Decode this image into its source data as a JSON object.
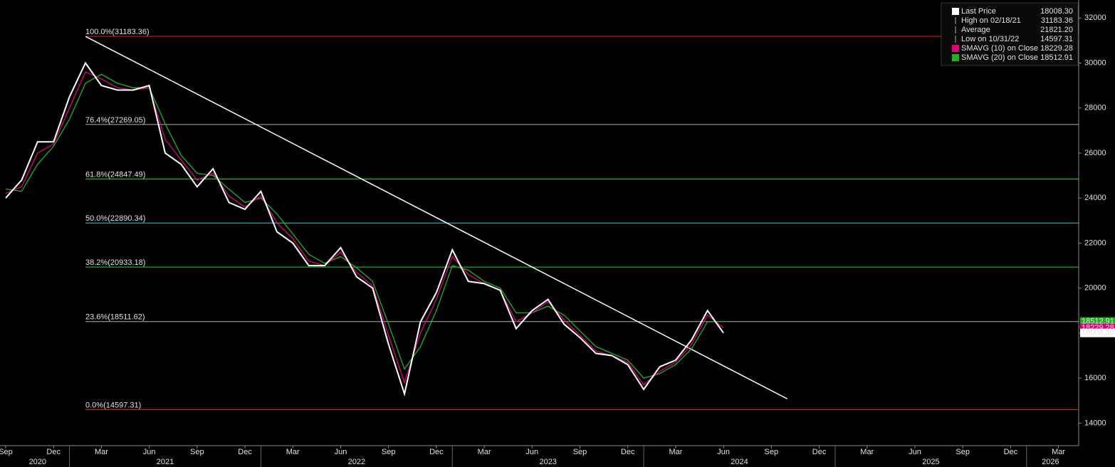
{
  "chart_data": {
    "type": "line",
    "x": [
      "2020-09",
      "2020-10",
      "2020-11",
      "2020-12",
      "2021-01",
      "2021-02",
      "2021-03",
      "2021-04",
      "2021-05",
      "2021-06",
      "2021-07",
      "2021-08",
      "2021-09",
      "2021-10",
      "2021-11",
      "2021-12",
      "2022-01",
      "2022-02",
      "2022-03",
      "2022-04",
      "2022-05",
      "2022-06",
      "2022-07",
      "2022-08",
      "2022-09",
      "2022-10",
      "2022-11",
      "2022-12",
      "2023-01",
      "2023-02",
      "2023-03",
      "2023-04",
      "2023-05",
      "2023-06",
      "2023-07",
      "2023-08",
      "2023-09",
      "2023-10",
      "2023-11",
      "2023-12",
      "2024-01",
      "2024-02",
      "2024-03",
      "2024-04",
      "2024-05",
      "2024-06"
    ],
    "series": [
      {
        "name": "Last Price",
        "color": "#ffffff",
        "tag_label": "18008,30",
        "values": [
          24000,
          24800,
          26500,
          26500,
          28500,
          30000,
          29000,
          28800,
          28800,
          29000,
          26000,
          25500,
          24500,
          25300,
          23800,
          23500,
          24300,
          22500,
          22000,
          21000,
          21000,
          21800,
          20500,
          20000,
          17500,
          15300,
          18500,
          19800,
          21700,
          20300,
          20200,
          19900,
          18200,
          19000,
          19500,
          18400,
          17800,
          17100,
          17000,
          16600,
          15500,
          16500,
          16800,
          17700,
          19000,
          18008.3
        ]
      },
      {
        "name": "SMAVG (10)  on Close",
        "color": "#e0007f",
        "tag_label": "18229,28",
        "values": [
          24200,
          24500,
          26000,
          26400,
          28000,
          29600,
          29300,
          28900,
          28800,
          28900,
          26600,
          25700,
          24800,
          25100,
          24100,
          23600,
          24100,
          22900,
          22200,
          21200,
          21000,
          21600,
          20700,
          20100,
          17900,
          15800,
          18000,
          19500,
          21400,
          20600,
          20200,
          19900,
          18500,
          18900,
          19400,
          18600,
          17900,
          17200,
          17000,
          16700,
          15700,
          16300,
          16700,
          17500,
          18800,
          18229.28
        ]
      },
      {
        "name": "SMAVG (20)  on Close",
        "color": "#1db31d",
        "tag_label": "18512,91",
        "values": [
          24400,
          24300,
          25500,
          26300,
          27500,
          29100,
          29500,
          29100,
          28900,
          28900,
          27300,
          25900,
          25100,
          25000,
          24400,
          23800,
          24000,
          23300,
          22400,
          21500,
          21100,
          21400,
          20900,
          20300,
          18400,
          16400,
          17400,
          19000,
          21000,
          20800,
          20300,
          20000,
          18900,
          18900,
          19200,
          18800,
          18100,
          17400,
          17100,
          16800,
          16000,
          16200,
          16600,
          17300,
          18500,
          18512.91
        ]
      }
    ],
    "legend": [
      {
        "name": "Last Price",
        "value_label": "18008.30",
        "color": "#ffffff"
      },
      {
        "name": "High on 02/18/21",
        "value_label": "31183.36"
      },
      {
        "name": "Average",
        "value_label": "21821.20"
      },
      {
        "name": "Low on 10/31/22",
        "value_label": "14597.31"
      },
      {
        "name": "SMAVG (10)  on Close",
        "value_label": "18229.28",
        "color": "#e0007f"
      },
      {
        "name": "SMAVG (20)  on Close",
        "value_label": "18512.91",
        "color": "#1db31d"
      }
    ],
    "fib_start": "2021-02",
    "fib_levels": [
      {
        "label": "100.0%(31183.36)",
        "value": 31183.36,
        "color": "#e02020"
      },
      {
        "label": "76.4%(27269.05)",
        "value": 27269.05,
        "color": "#b0b0b0"
      },
      {
        "label": "61.8%(24847.49)",
        "value": 24847.49,
        "color": "#22dd22"
      },
      {
        "label": "50.0%(22890.34)",
        "value": 22890.34,
        "color": "#33cccc"
      },
      {
        "label": "38.2%(20933.18)",
        "value": 20933.18,
        "color": "#22dd22"
      },
      {
        "label": "23.6%(18511.62)",
        "value": 18511.62,
        "color": "#b0b0b0"
      },
      {
        "label": "0.0%(14597.31)",
        "value": 14597.31,
        "color": "#e02020"
      }
    ],
    "trendline": {
      "x": [
        "2021-02",
        "2024-10"
      ],
      "values": [
        31183.36,
        15080
      ],
      "color": "#ffffff"
    },
    "xlim": [
      "2020-09",
      "2026-04"
    ],
    "xticks": [
      {
        "value": "2020-09",
        "label": "Sep"
      },
      {
        "value": "2020-12",
        "label": "Dec"
      },
      {
        "value": "2021-03",
        "label": "Mar"
      },
      {
        "value": "2021-06",
        "label": "Jun"
      },
      {
        "value": "2021-09",
        "label": "Sep"
      },
      {
        "value": "2021-12",
        "label": "Dec"
      },
      {
        "value": "2022-03",
        "label": "Mar"
      },
      {
        "value": "2022-06",
        "label": "Jun"
      },
      {
        "value": "2022-09",
        "label": "Sep"
      },
      {
        "value": "2022-12",
        "label": "Dec"
      },
      {
        "value": "2023-03",
        "label": "Mar"
      },
      {
        "value": "2023-06",
        "label": "Jun"
      },
      {
        "value": "2023-09",
        "label": "Sep"
      },
      {
        "value": "2023-12",
        "label": "Dec"
      },
      {
        "value": "2024-03",
        "label": "Mar"
      },
      {
        "value": "2024-06",
        "label": "Jun"
      },
      {
        "value": "2024-09",
        "label": "Sep"
      },
      {
        "value": "2024-12",
        "label": "Dec"
      },
      {
        "value": "2025-03",
        "label": "Mar"
      },
      {
        "value": "2025-06",
        "label": "Jun"
      },
      {
        "value": "2025-09",
        "label": "Sep"
      },
      {
        "value": "2025-12",
        "label": "Dec"
      },
      {
        "value": "2026-03",
        "label": "Mar"
      }
    ],
    "years": [
      "2020",
      "2021",
      "2022",
      "2023",
      "2024",
      "2025",
      "2026"
    ],
    "ylim": [
      13000,
      32800
    ],
    "yticks": [
      14000,
      16000,
      18000,
      20000,
      22000,
      24000,
      26000,
      28000,
      30000,
      32000
    ]
  }
}
